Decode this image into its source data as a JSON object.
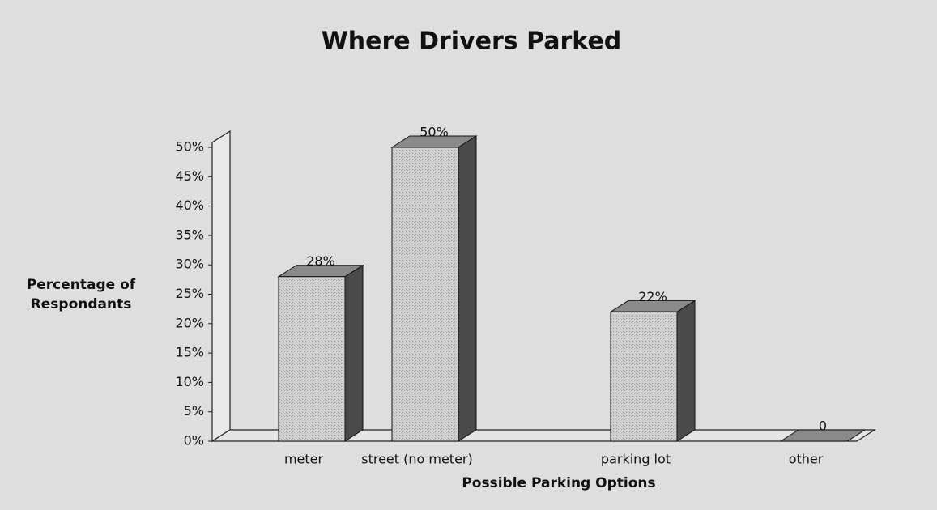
{
  "chart_data": {
    "type": "bar",
    "title": "Where Drivers Parked",
    "categories": [
      "meter",
      "street (no meter)",
      "parking lot",
      "other"
    ],
    "values": [
      28,
      50,
      22,
      0
    ],
    "value_labels": [
      "28%",
      "50%",
      "22%",
      "0"
    ],
    "color": "#c9c9c9",
    "xlabel": "Possible Parking Options",
    "ylabel": [
      "Percentage of",
      "Respondants"
    ],
    "ylim": [
      0,
      50
    ],
    "yticks": [
      {
        "value": 0,
        "label": "0%"
      },
      {
        "value": 5,
        "label": "5%"
      },
      {
        "value": 10,
        "label": "10%"
      },
      {
        "value": 15,
        "label": "15%"
      },
      {
        "value": 20,
        "label": "20%"
      },
      {
        "value": 25,
        "label": "25%"
      },
      {
        "value": 30,
        "label": "30%"
      },
      {
        "value": 35,
        "label": "35%"
      },
      {
        "value": 40,
        "label": "40%"
      },
      {
        "value": 45,
        "label": "45%"
      },
      {
        "value": 50,
        "label": "50%"
      }
    ]
  }
}
